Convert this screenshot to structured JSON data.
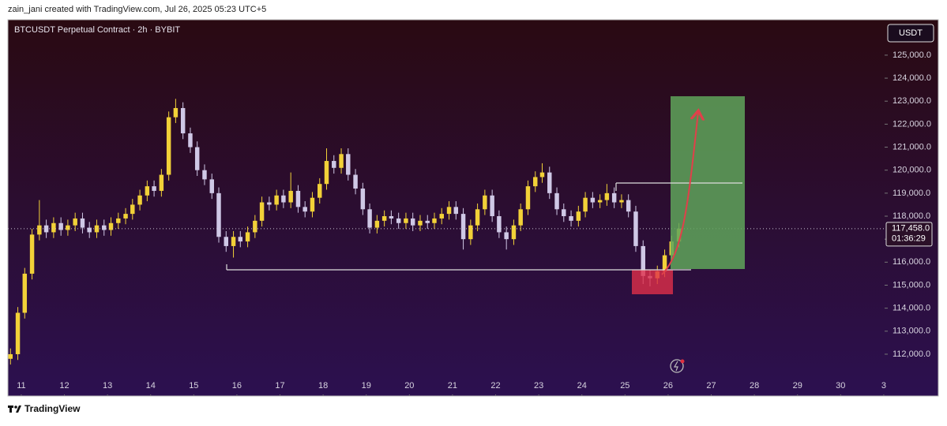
{
  "header": "zain_jani created with TradingView.com, Jul 26, 2025 05:23 UTC+5",
  "footer": "TradingView",
  "chart_data": {
    "type": "candlestick",
    "title": "BTCUSDT Perpetual Contract · 2h · BYBIT",
    "currency": "USDT",
    "up_color": "#f2d138",
    "down_color": "#cfc8e6",
    "xlim": [
      -0.31,
      20.02
    ],
    "ylim": [
      110250,
      126540
    ],
    "xticks": [
      {
        "value": 0,
        "label": "11"
      },
      {
        "value": 1,
        "label": "12"
      },
      {
        "value": 2,
        "label": "13"
      },
      {
        "value": 3,
        "label": "14"
      },
      {
        "value": 4,
        "label": "15"
      },
      {
        "value": 5,
        "label": "16"
      },
      {
        "value": 6,
        "label": "17"
      },
      {
        "value": 7,
        "label": "18"
      },
      {
        "value": 8,
        "label": "19"
      },
      {
        "value": 9,
        "label": "20"
      },
      {
        "value": 10,
        "label": "21"
      },
      {
        "value": 11,
        "label": "22"
      },
      {
        "value": 12,
        "label": "23"
      },
      {
        "value": 13,
        "label": "24"
      },
      {
        "value": 14,
        "label": "25"
      },
      {
        "value": 15,
        "label": "26"
      },
      {
        "value": 16,
        "label": "27"
      },
      {
        "value": 17,
        "label": "28"
      },
      {
        "value": 18,
        "label": "29"
      },
      {
        "value": 19,
        "label": "30"
      },
      {
        "value": 20,
        "label": "3"
      }
    ],
    "yticks": [
      {
        "value": 112000,
        "label": "112,000.0"
      },
      {
        "value": 113000,
        "label": "113,000.0"
      },
      {
        "value": 114000,
        "label": "114,000.0"
      },
      {
        "value": 115000,
        "label": "115,000.0"
      },
      {
        "value": 116000,
        "label": "116,000.0"
      },
      {
        "value": 117000,
        "label": "117,000.0"
      },
      {
        "value": 118000,
        "label": "118,000.0"
      },
      {
        "value": 119000,
        "label": "119,000.0"
      },
      {
        "value": 120000,
        "label": "120,000.0"
      },
      {
        "value": 121000,
        "label": "121,000.0"
      },
      {
        "value": 122000,
        "label": "122,000.0"
      },
      {
        "value": 123000,
        "label": "123,000.0"
      },
      {
        "value": 124000,
        "label": "124,000.0"
      },
      {
        "value": 125000,
        "label": "125,000.0"
      }
    ],
    "last_price": {
      "value": 117458,
      "label": "117,458.0"
    },
    "countdown": "01:36:29",
    "x": [
      -0.25,
      -0.08,
      0.08,
      0.25,
      0.42,
      0.58,
      0.75,
      0.92,
      1.08,
      1.25,
      1.42,
      1.58,
      1.75,
      1.92,
      2.08,
      2.25,
      2.42,
      2.58,
      2.75,
      2.92,
      3.08,
      3.25,
      3.42,
      3.58,
      3.75,
      3.92,
      4.08,
      4.25,
      4.42,
      4.58,
      4.75,
      4.92,
      5.08,
      5.25,
      5.42,
      5.58,
      5.75,
      5.92,
      6.08,
      6.25,
      6.42,
      6.58,
      6.75,
      6.92,
      7.08,
      7.25,
      7.42,
      7.58,
      7.75,
      7.92,
      8.08,
      8.25,
      8.42,
      8.58,
      8.75,
      8.92,
      9.08,
      9.25,
      9.42,
      9.58,
      9.75,
      9.92,
      10.08,
      10.25,
      10.42,
      10.58,
      10.75,
      10.92,
      11.08,
      11.25,
      11.42,
      11.58,
      11.75,
      11.92,
      12.08,
      12.25,
      12.42,
      12.58,
      12.75,
      12.92,
      13.08,
      13.25,
      13.42,
      13.58,
      13.75,
      13.92,
      14.08,
      14.25,
      14.42,
      14.58,
      14.75,
      14.92,
      15.08,
      15.25
    ],
    "open": [
      111800,
      112000,
      113800,
      115500,
      117200,
      117600,
      117300,
      117700,
      117400,
      117600,
      117900,
      117500,
      117300,
      117600,
      117400,
      117700,
      117900,
      118100,
      118500,
      118900,
      119300,
      119100,
      119800,
      122300,
      122700,
      121600,
      121000,
      120000,
      119600,
      119000,
      117100,
      116700,
      117100,
      116900,
      117300,
      117800,
      118600,
      118500,
      118900,
      118600,
      119100,
      118400,
      118200,
      118800,
      119400,
      120400,
      120100,
      120700,
      119800,
      119200,
      118300,
      117500,
      117800,
      118000,
      117900,
      117700,
      117900,
      117600,
      117800,
      117700,
      117900,
      118100,
      118400,
      118100,
      117000,
      117600,
      118300,
      118900,
      118000,
      117300,
      117000,
      117600,
      118300,
      119300,
      119700,
      119900,
      119000,
      118300,
      118000,
      117800,
      118200,
      118800,
      118600,
      118700,
      119000,
      118600,
      118700,
      118200,
      116700,
      115400,
      115300,
      115600,
      116300,
      116900
    ],
    "high": [
      112250,
      114050,
      115750,
      117450,
      118700,
      117850,
      117950,
      117950,
      117850,
      118150,
      118150,
      117750,
      117850,
      117850,
      117950,
      118150,
      118350,
      118750,
      119150,
      119550,
      119550,
      120050,
      122550,
      123100,
      122950,
      121850,
      121250,
      120250,
      119850,
      119250,
      117350,
      117350,
      117350,
      117550,
      118050,
      118850,
      118850,
      119150,
      119150,
      119900,
      119350,
      118650,
      119050,
      119650,
      120950,
      120650,
      120950,
      120950,
      120050,
      119450,
      118550,
      118050,
      118250,
      118250,
      118150,
      118150,
      118150,
      118050,
      118050,
      118150,
      118350,
      118650,
      118650,
      118350,
      117850,
      118550,
      119150,
      119150,
      118250,
      117550,
      117850,
      118550,
      119550,
      119950,
      120300,
      120150,
      119250,
      118550,
      118250,
      118450,
      119050,
      119050,
      118950,
      119400,
      119250,
      118950,
      118950,
      118450,
      116950,
      115650,
      115850,
      116550,
      117150,
      117700
    ],
    "low": [
      111550,
      111750,
      113550,
      115250,
      116950,
      117050,
      117050,
      117150,
      117150,
      117350,
      117250,
      117050,
      117050,
      117150,
      117150,
      117450,
      117650,
      117850,
      118250,
      118650,
      118850,
      118850,
      119550,
      122050,
      121350,
      120750,
      119750,
      119350,
      118750,
      116850,
      116450,
      116200,
      116650,
      116650,
      117050,
      117550,
      118250,
      118250,
      118350,
      118350,
      118150,
      117950,
      117950,
      118550,
      119150,
      119850,
      119850,
      119550,
      118950,
      118050,
      117250,
      117250,
      117550,
      117650,
      117450,
      117450,
      117350,
      117350,
      117450,
      117450,
      117650,
      117850,
      117850,
      116550,
      116750,
      117350,
      118050,
      117750,
      117050,
      116550,
      116750,
      117350,
      118050,
      119050,
      119450,
      118750,
      118050,
      117750,
      117550,
      117550,
      117950,
      118350,
      118350,
      118450,
      118350,
      118350,
      117950,
      116450,
      115050,
      114950,
      115050,
      115350,
      116050,
      116650
    ],
    "close": [
      112000,
      113800,
      115500,
      117200,
      117600,
      117300,
      117700,
      117400,
      117600,
      117900,
      117500,
      117300,
      117600,
      117400,
      117700,
      117900,
      118100,
      118500,
      118900,
      119300,
      119100,
      119800,
      122300,
      122700,
      121600,
      121000,
      120000,
      119600,
      119000,
      117100,
      116700,
      117100,
      116900,
      117300,
      117800,
      118600,
      118500,
      118900,
      118600,
      119100,
      118400,
      118200,
      118800,
      119400,
      120400,
      120100,
      120700,
      119800,
      119200,
      118300,
      117500,
      117800,
      118000,
      117900,
      117700,
      117900,
      117600,
      117800,
      117700,
      117900,
      118100,
      118400,
      118100,
      117000,
      117600,
      118300,
      118900,
      118000,
      117300,
      117000,
      117600,
      118300,
      119300,
      119700,
      119900,
      119000,
      118300,
      118000,
      117800,
      118200,
      118800,
      118600,
      118700,
      119000,
      118600,
      118700,
      118200,
      116700,
      115400,
      115300,
      115600,
      116300,
      116900,
      117458
    ]
  }
}
